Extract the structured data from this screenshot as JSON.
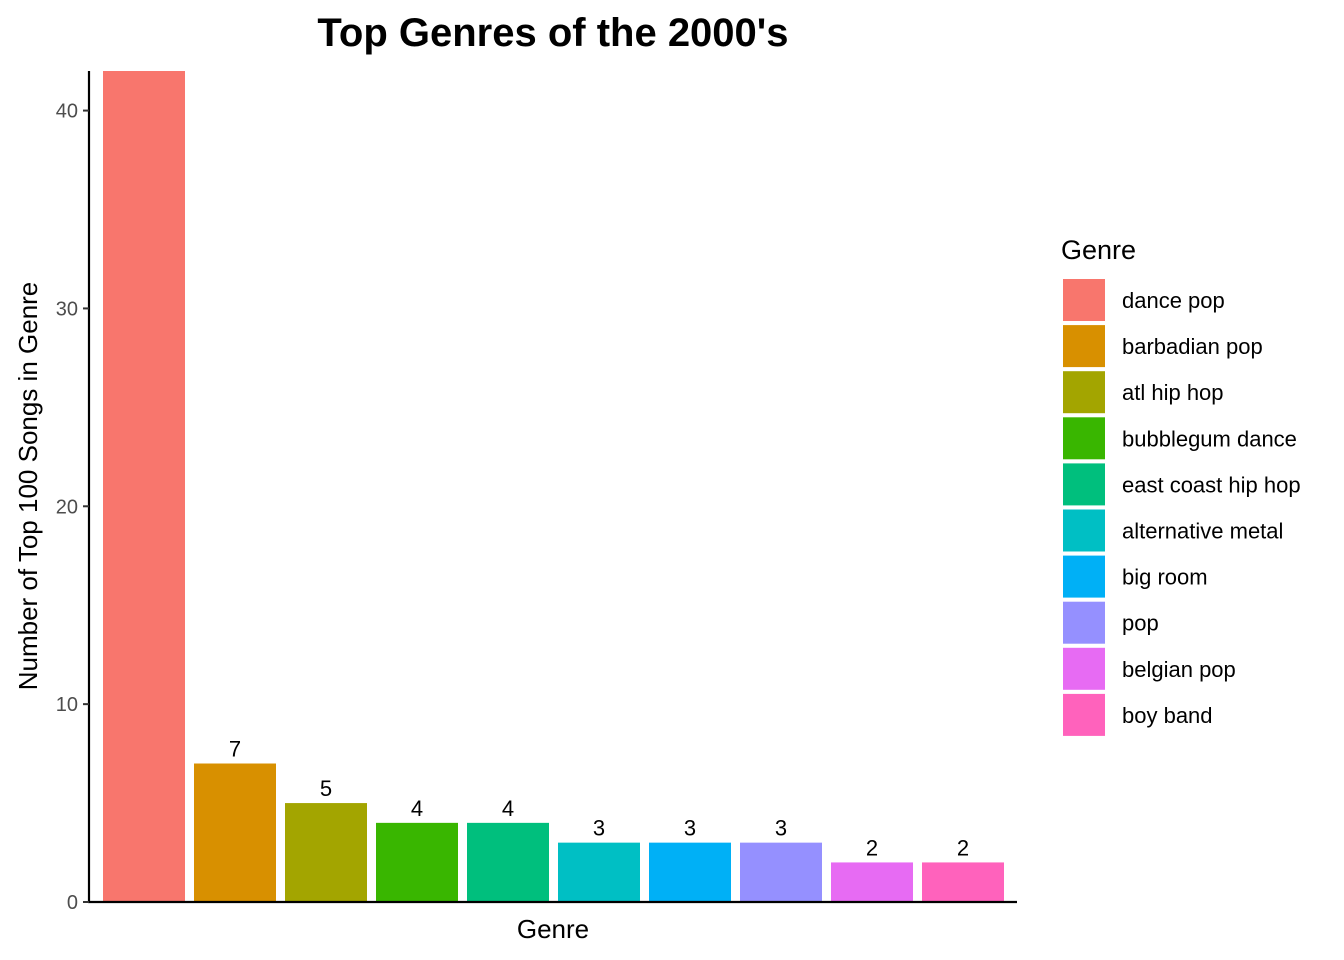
{
  "chart_data": {
    "type": "bar",
    "title": "Top Genres of the 2000's",
    "xlabel": "Genre",
    "ylabel": "Number of Top 100 Songs in Genre",
    "ylim": [
      0,
      42
    ],
    "yticks": [
      0,
      10,
      20,
      30,
      40
    ],
    "grid": false,
    "legend": {
      "title": "Genre",
      "position": "right"
    },
    "categories": [
      "dance pop",
      "barbadian pop",
      "atl hip hop",
      "bubblegum dance",
      "east coast hip hop",
      "alternative metal",
      "big room",
      "pop",
      "belgian pop",
      "boy band"
    ],
    "values": [
      42,
      7,
      5,
      4,
      4,
      3,
      3,
      3,
      2,
      2
    ],
    "data_labels": [
      "",
      "7",
      "5",
      "4",
      "4",
      "3",
      "3",
      "3",
      "2",
      "2"
    ],
    "colors": [
      "#F8766D",
      "#D89000",
      "#A3A500",
      "#39B600",
      "#00BF7D",
      "#00BFC4",
      "#00B0F6",
      "#9590FF",
      "#E76BF3",
      "#FF62BC"
    ]
  }
}
